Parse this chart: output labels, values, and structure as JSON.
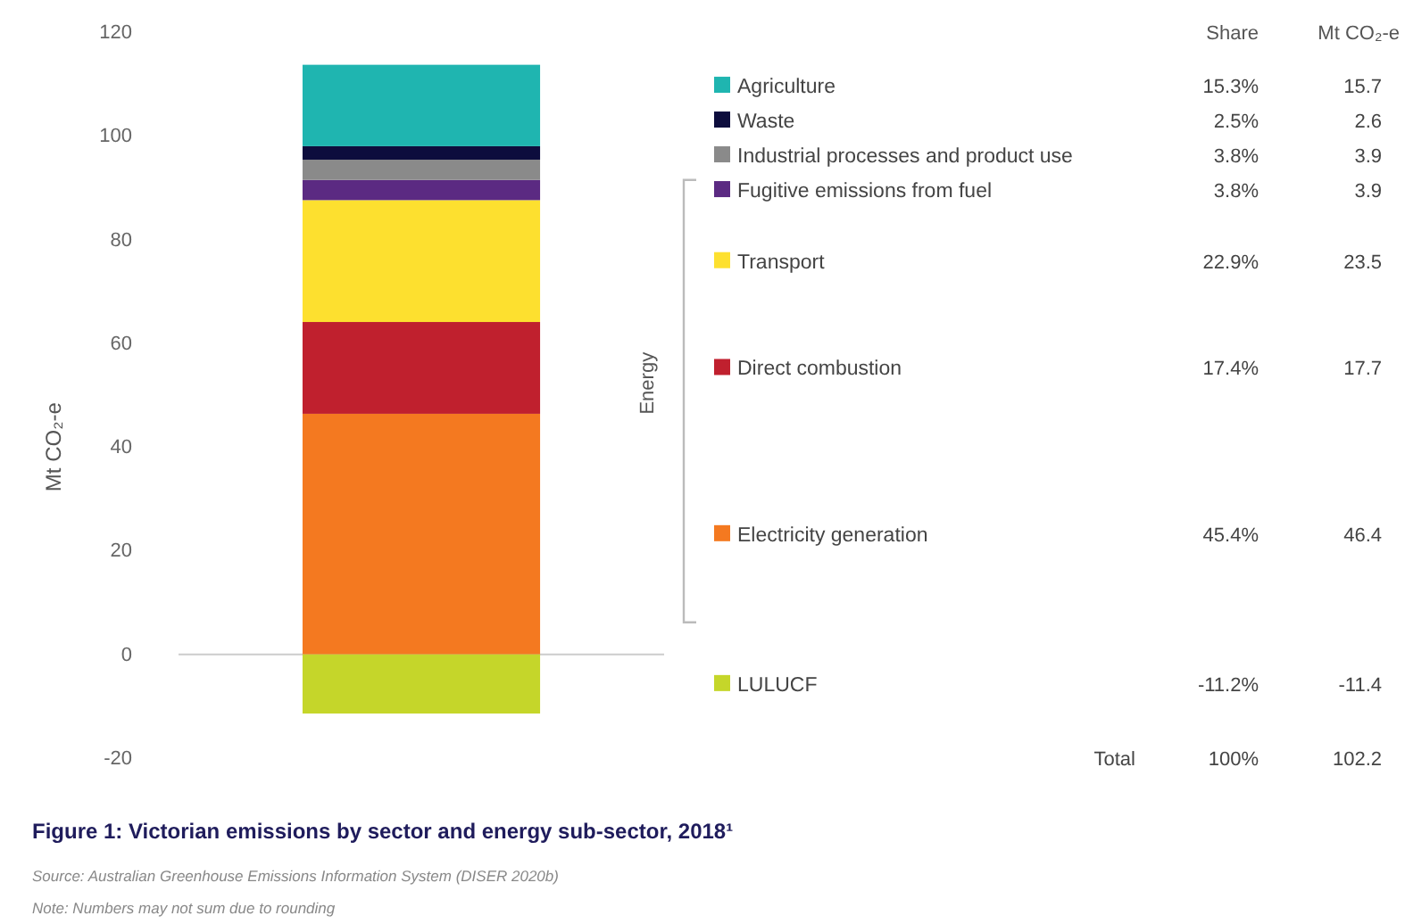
{
  "chart_data": {
    "type": "bar",
    "stacked": true,
    "title": "Figure 1: Victorian emissions by sector and energy sub-sector, 2018¹",
    "ylabel": "Mt CO₂-e",
    "categories": [
      null
    ],
    "series": [
      {
        "name": "Electricity generation",
        "color": "#f47920",
        "values": [
          46.4
        ]
      },
      {
        "name": "Direct combustion",
        "color": "#c0202e",
        "values": [
          17.7
        ]
      },
      {
        "name": "Transport",
        "color": "#fde02f",
        "values": [
          23.5
        ]
      },
      {
        "name": "Fugitive emissions from fuel",
        "color": "#5b2a82",
        "values": [
          3.9
        ]
      },
      {
        "name": "Industrial processes and product use",
        "color": "#8a8a8a",
        "values": [
          3.9
        ]
      },
      {
        "name": "Waste",
        "color": "#0d0d3d",
        "values": [
          2.6
        ]
      },
      {
        "name": "Agriculture",
        "color": "#1fb5b0",
        "values": [
          15.7
        ]
      },
      {
        "name": "LULUCF",
        "color": "#c5d62a",
        "values": [
          -11.4
        ]
      }
    ],
    "ylim": [
      -20,
      120
    ],
    "yticks": [
      -20,
      0,
      20,
      40,
      60,
      80,
      100,
      120
    ],
    "grid": false,
    "legend": "right",
    "ref_lines": [
      {
        "axis": "y",
        "value": 0,
        "color": "#cccccc"
      }
    ],
    "annotations": [
      "Share",
      "Mt CO₂-e",
      "45.4%",
      "17.4%",
      "22.9%",
      "3.8%",
      "3.8%",
      "2.5%",
      "15.3%",
      "-11.2%",
      "46.4",
      "17.7",
      "23.5",
      "3.9",
      "3.9",
      "2.6",
      "15.7",
      "-11.4",
      "Total",
      "100%",
      "102.2",
      "Energy",
      "Source: Australian Greenhouse Emissions Information System (DISER 2020b)",
      "Note: Numbers may not sum due to rounding"
    ]
  }
}
